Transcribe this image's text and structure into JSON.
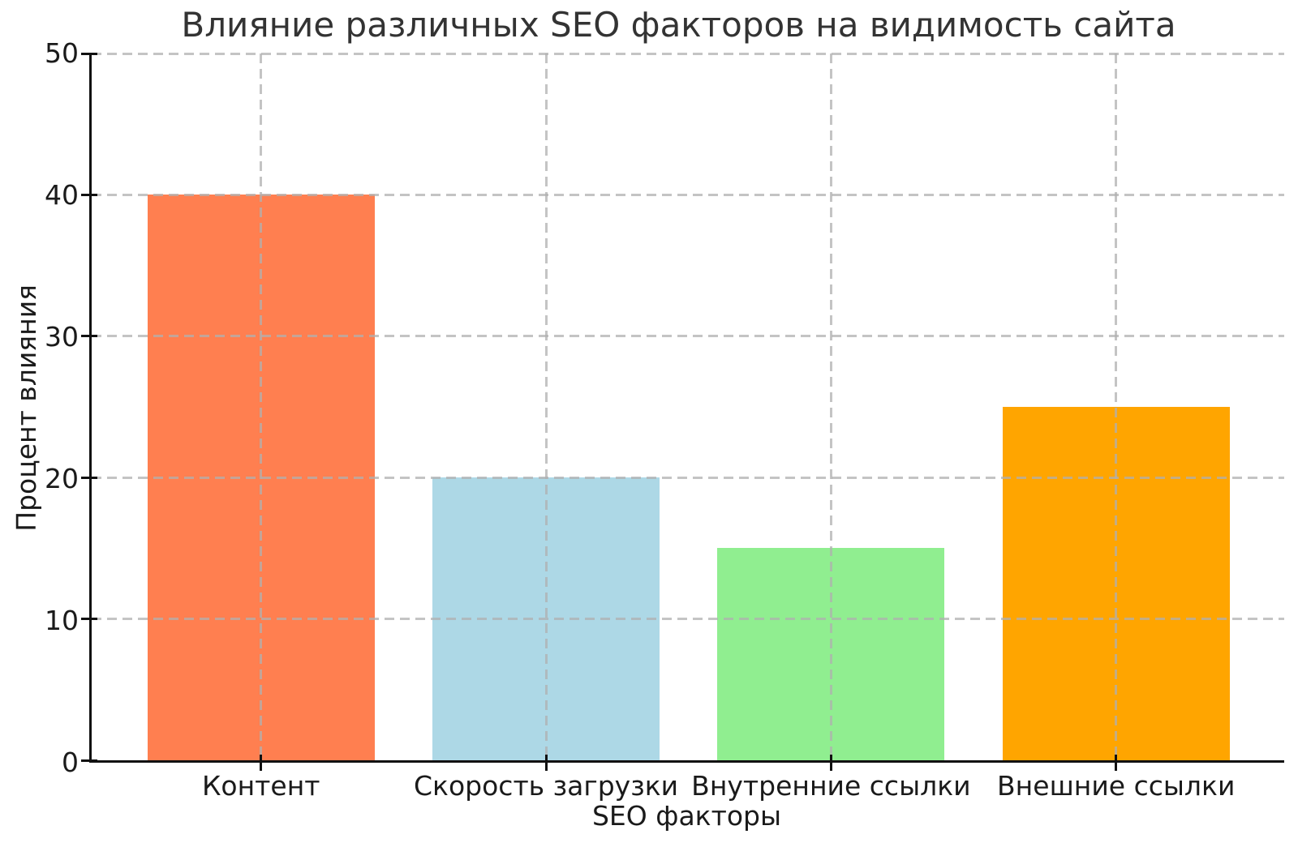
{
  "figure": {
    "background": "#ffffff",
    "spine_color": "#111111",
    "grid_color": "#b0b0b0",
    "title_color": "#333333",
    "tick_label_color": "#1a1a1a"
  },
  "chart_data": {
    "type": "bar",
    "title": "Влияние различных SEO факторов на видимость сайта",
    "xlabel": "SEO факторы",
    "ylabel": "Процент влияния",
    "categories": [
      "Контент",
      "Скорость загрузки",
      "Внутренние ссылки",
      "Внешние ссылки"
    ],
    "values": [
      40,
      20,
      15,
      25
    ],
    "bar_colors": [
      "#ff7f50",
      "#add8e6",
      "#90ee90",
      "#ffa500"
    ],
    "ylim": [
      0,
      50
    ],
    "yticks": [
      0,
      10,
      20,
      30,
      40,
      50
    ],
    "grid": {
      "visible": true,
      "style": "dashed",
      "axes": "both",
      "above_bars": true
    },
    "legend_position": "none"
  }
}
